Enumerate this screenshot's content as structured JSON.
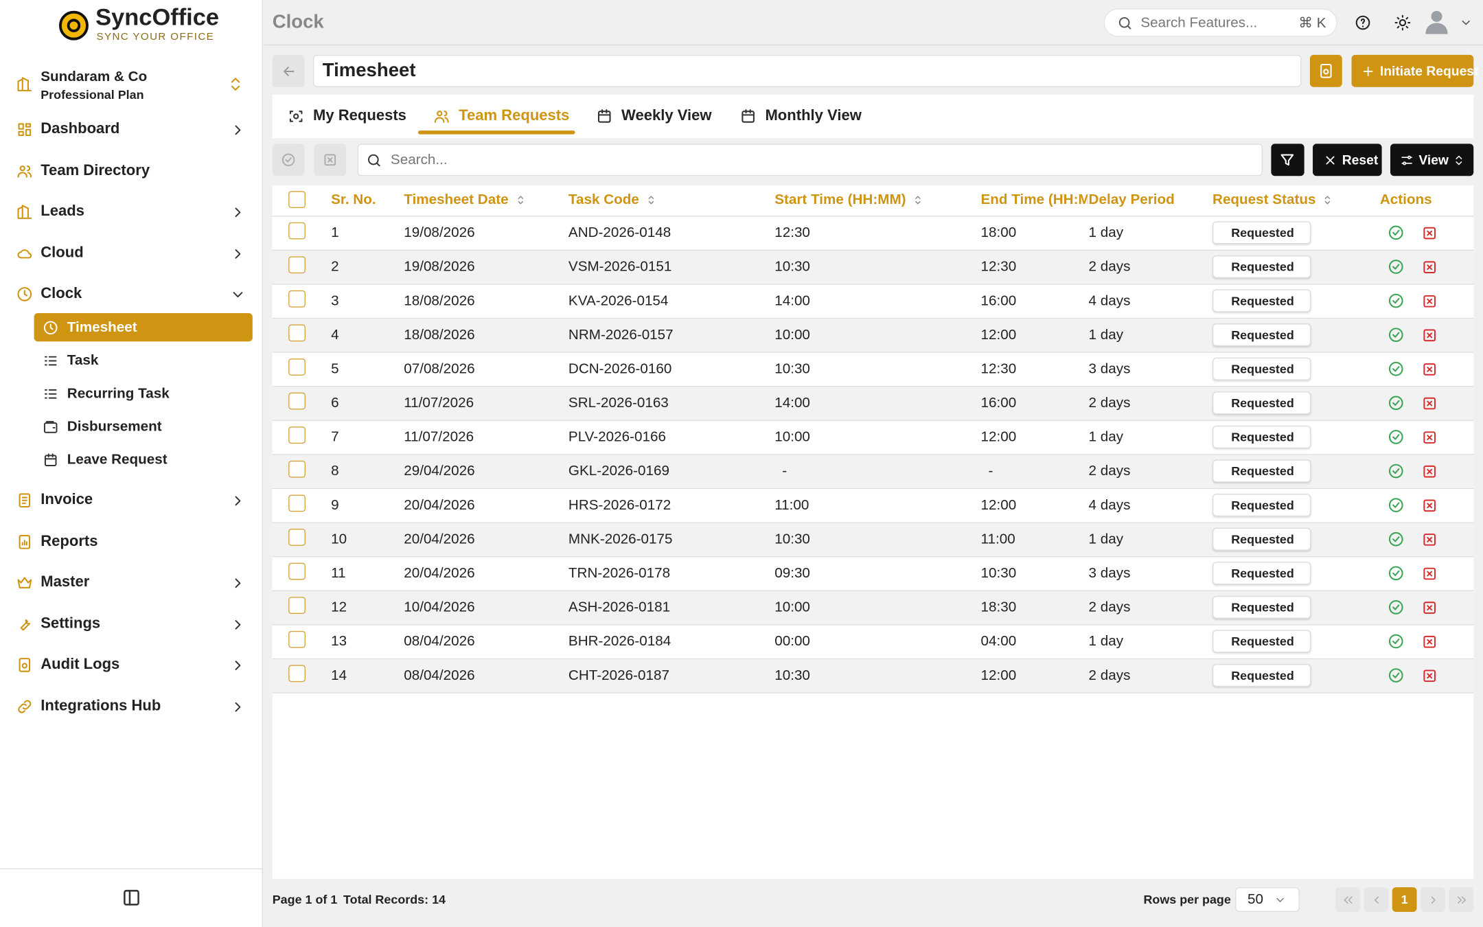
{
  "brand": {
    "name": "SyncOffice",
    "tagline": "SYNC YOUR OFFICE"
  },
  "org": {
    "name": "Sundaram & Co",
    "plan": "Professional Plan"
  },
  "nav_top": [
    "Dashboard",
    "Team Directory",
    "Leads",
    "Cloud",
    "Clock"
  ],
  "clock_menu": [
    "Timesheet",
    "Task",
    "Recurring Task",
    "Disbursement",
    "Leave Request"
  ],
  "nav_bottom": [
    "Invoice",
    "Reports",
    "Master",
    "Settings",
    "Audit Logs",
    "Integrations Hub"
  ],
  "header": {
    "section": "Clock",
    "search": "Search Features...",
    "shortcut": "⌘ K"
  },
  "page": {
    "title": "Timesheet",
    "primary_action": "Initiate Request"
  },
  "tabs": [
    "My Requests",
    "Team Requests",
    "Weekly View",
    "Monthly View"
  ],
  "toolbar": {
    "search": "Search...",
    "reset": "Reset",
    "view": "View"
  },
  "table": {
    "columns": [
      {
        "label": "Sr. No.",
        "sortable": false
      },
      {
        "label": "Timesheet Date",
        "sortable": true
      },
      {
        "label": "Task Code",
        "sortable": true
      },
      {
        "label": "Start Time (HH:MM)",
        "sortable": true
      },
      {
        "label": "End Time (HH:MM)",
        "sortable": false
      },
      {
        "label": "Delay Period",
        "sortable": false
      },
      {
        "label": "Request Status",
        "sortable": true
      },
      {
        "label": "Actions",
        "sortable": false
      }
    ],
    "rows": [
      [
        "1",
        "19/08/2026",
        "AND-2026-0148",
        "12:30",
        "18:00",
        "1 day",
        "Requested"
      ],
      [
        "2",
        "19/08/2026",
        "VSM-2026-0151",
        "10:30",
        "12:30",
        "2 days",
        "Requested"
      ],
      [
        "3",
        "18/08/2026",
        "KVA-2026-0154",
        "14:00",
        "16:00",
        "4 days",
        "Requested"
      ],
      [
        "4",
        "18/08/2026",
        "NRM-2026-0157",
        "10:00",
        "12:00",
        "1 day",
        "Requested"
      ],
      [
        "5",
        "07/08/2026",
        "DCN-2026-0160",
        "10:30",
        "12:30",
        "3 days",
        "Requested"
      ],
      [
        "6",
        "11/07/2026",
        "SRL-2026-0163",
        "14:00",
        "16:00",
        "2 days",
        "Requested"
      ],
      [
        "7",
        "11/07/2026",
        "PLV-2026-0166",
        "10:00",
        "12:00",
        "1 day",
        "Requested"
      ],
      [
        "8",
        "29/04/2026",
        "GKL-2026-0169",
        "-",
        "-",
        "2 days",
        "Requested"
      ],
      [
        "9",
        "20/04/2026",
        "HRS-2026-0172",
        "11:00",
        "12:00",
        "4 days",
        "Requested"
      ],
      [
        "10",
        "20/04/2026",
        "MNK-2026-0175",
        "10:30",
        "11:00",
        "1 day",
        "Requested"
      ],
      [
        "11",
        "20/04/2026",
        "TRN-2026-0178",
        "09:30",
        "10:30",
        "3 days",
        "Requested"
      ],
      [
        "12",
        "10/04/2026",
        "ASH-2026-0181",
        "10:00",
        "18:30",
        "2 days",
        "Requested"
      ],
      [
        "13",
        "08/04/2026",
        "BHR-2026-0184",
        "00:00",
        "04:00",
        "1 day",
        "Requested"
      ],
      [
        "14",
        "08/04/2026",
        "CHT-2026-0187",
        "10:30",
        "12:00",
        "2 days",
        "Requested"
      ]
    ]
  },
  "footer": {
    "page": "Page 1 of 1",
    "total": "Total Records: 14",
    "rows_label": "Rows per page",
    "rows_value": "50",
    "current_page": "1"
  }
}
